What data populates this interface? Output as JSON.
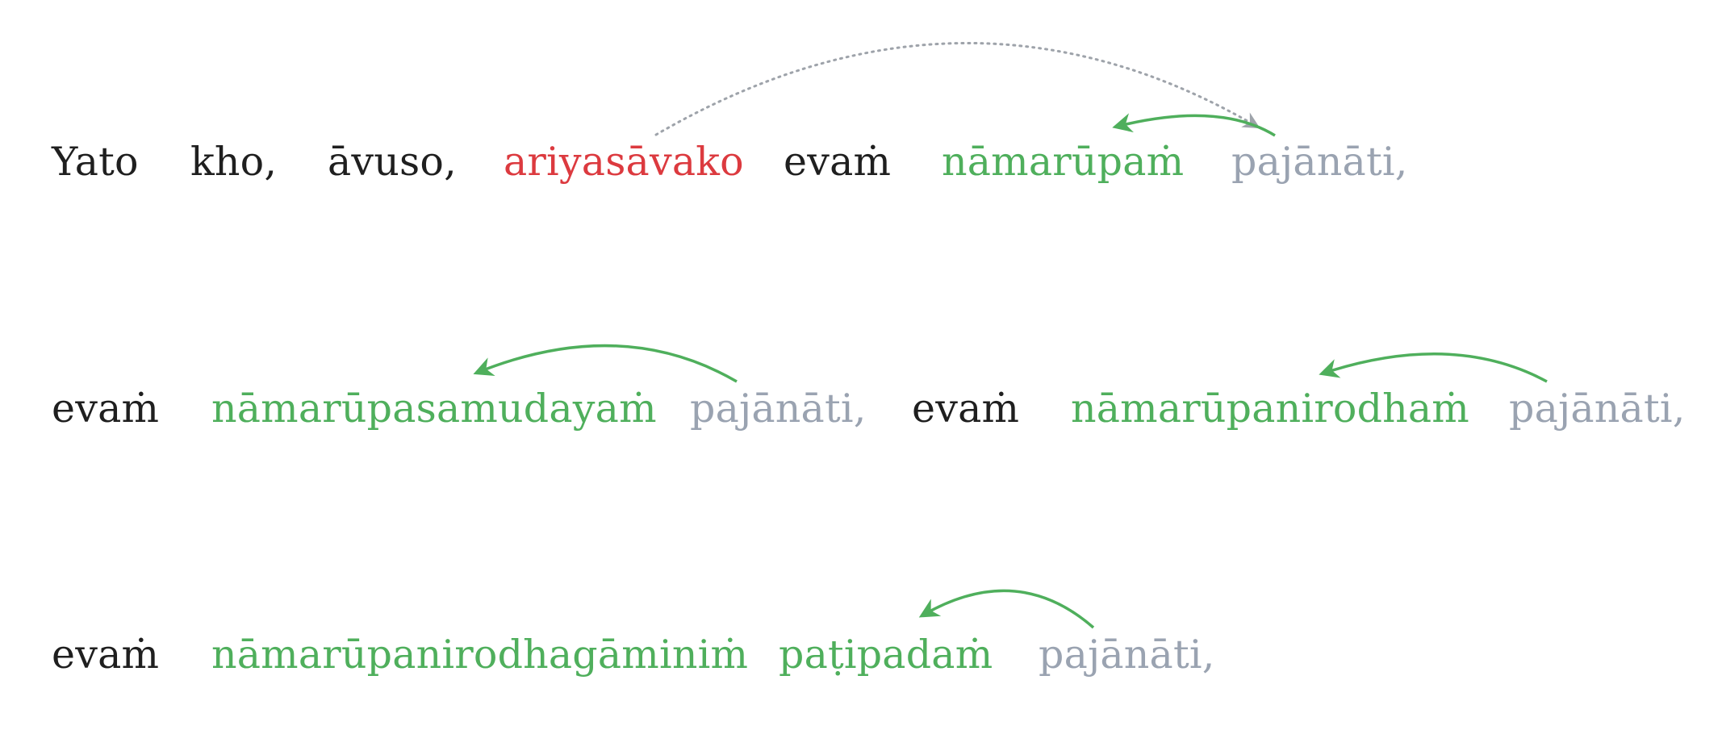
{
  "colors": {
    "default": "#1f1f1f",
    "subject": "#dc3a3f",
    "object": "#4faf5c",
    "verb": "#9aa3b1",
    "arc_dotted": "#9ea3aa",
    "arc_solid": "#4faf5c"
  },
  "lines": [
    {
      "words": [
        {
          "text": "Yato",
          "role": "default"
        },
        {
          "text": "kho,",
          "role": "default"
        },
        {
          "text": "āvuso,",
          "role": "default"
        },
        {
          "text": "ariyasāvako",
          "role": "subject"
        },
        {
          "text": "evaṁ",
          "role": "default"
        },
        {
          "text": "nāmarūpaṁ",
          "role": "object"
        },
        {
          "text": "pajānāti,",
          "role": "verb"
        }
      ]
    },
    {
      "words": [
        {
          "text": "evaṁ",
          "role": "default"
        },
        {
          "text": "nāmarūpasamudayaṁ",
          "role": "object"
        },
        {
          "text": "pajānāti,",
          "role": "verb"
        },
        {
          "text": "evaṁ",
          "role": "default"
        },
        {
          "text": "nāmarūpanirodhaṁ",
          "role": "object"
        },
        {
          "text": "pajānāti,",
          "role": "verb"
        }
      ]
    },
    {
      "words": [
        {
          "text": "evaṁ",
          "role": "default"
        },
        {
          "text": "nāmarūpanirodhagāminiṁ",
          "role": "object"
        },
        {
          "text": "paṭipadaṁ",
          "role": "object"
        },
        {
          "text": "pajānāti,",
          "role": "verb"
        }
      ]
    }
  ],
  "arcs": [
    {
      "from": "ariyasāvako",
      "to": "pajānāti,",
      "line": 1,
      "style": "dotted"
    },
    {
      "from": "pajānāti,",
      "to": "nāmarūpaṁ",
      "line": 1,
      "style": "solid"
    },
    {
      "from": "pajānāti,",
      "to": "nāmarūpasamudayaṁ",
      "line": 2,
      "style": "solid"
    },
    {
      "from": "pajānāti,",
      "to": "nāmarūpanirodhaṁ",
      "line": 2,
      "style": "solid"
    },
    {
      "from": "pajānāti,",
      "to": "paṭipadaṁ",
      "line": 3,
      "style": "solid"
    }
  ]
}
